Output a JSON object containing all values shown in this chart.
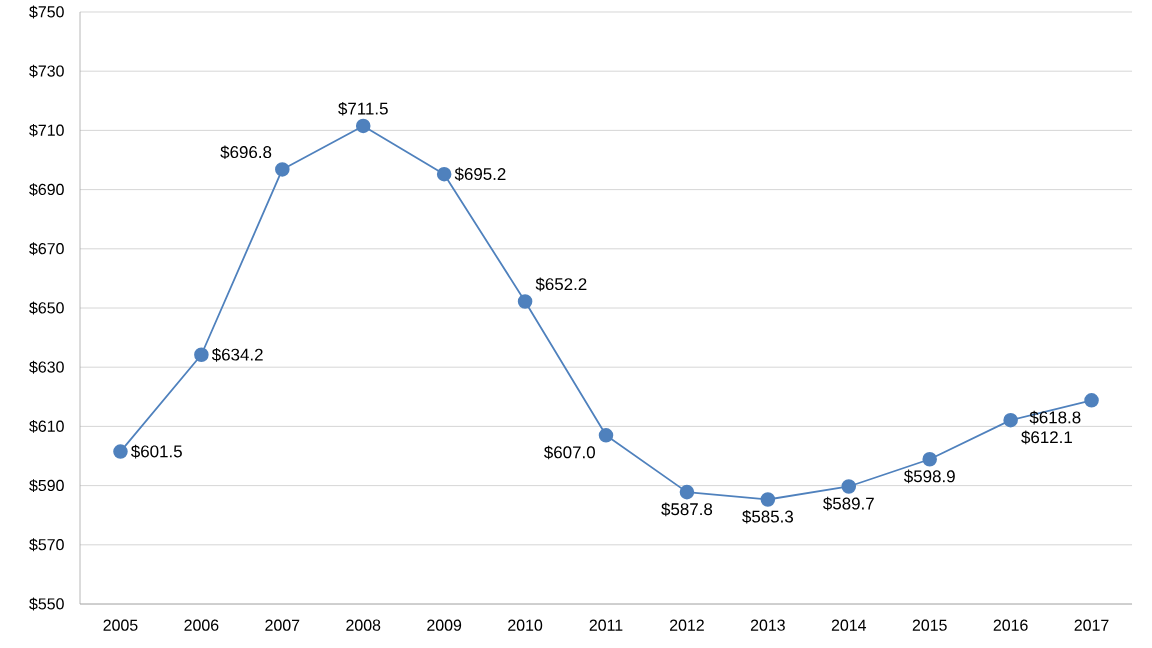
{
  "chart_data": {
    "type": "line",
    "categories": [
      "2005",
      "2006",
      "2007",
      "2008",
      "2009",
      "2010",
      "2011",
      "2012",
      "2013",
      "2014",
      "2015",
      "2016",
      "2017"
    ],
    "values": [
      601.5,
      634.2,
      696.8,
      711.5,
      695.2,
      652.2,
      607.0,
      587.8,
      585.3,
      589.7,
      598.9,
      612.1,
      618.8
    ],
    "value_labels": [
      "$601.5",
      "$634.2",
      "$696.8",
      "$711.5",
      "$695.2",
      "$652.2",
      "$607.0",
      "$587.8",
      "$585.3",
      "$589.7",
      "$598.9",
      "$612.1",
      "$618.8"
    ],
    "color": "#4f81bd",
    "marker": "circle",
    "line_style": "solid",
    "grid": "y",
    "ylim": [
      550,
      750
    ],
    "yticks": [
      {
        "value": 550,
        "label": "$550"
      },
      {
        "value": 570,
        "label": "$570"
      },
      {
        "value": 590,
        "label": "$590"
      },
      {
        "value": 610,
        "label": "$610"
      },
      {
        "value": 630,
        "label": "$630"
      },
      {
        "value": 650,
        "label": "$650"
      },
      {
        "value": 670,
        "label": "$670"
      },
      {
        "value": 690,
        "label": "$690"
      },
      {
        "value": 710,
        "label": "$710"
      },
      {
        "value": 730,
        "label": "$730"
      },
      {
        "value": 750,
        "label": "$750"
      }
    ]
  }
}
